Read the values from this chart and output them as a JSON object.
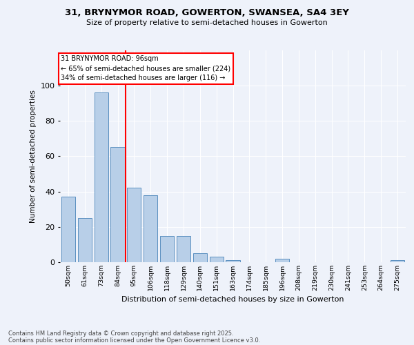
{
  "title1": "31, BRYNYMOR ROAD, GOWERTON, SWANSEA, SA4 3EY",
  "title2": "Size of property relative to semi-detached houses in Gowerton",
  "xlabel": "Distribution of semi-detached houses by size in Gowerton",
  "ylabel": "Number of semi-detached properties",
  "categories": [
    "50sqm",
    "61sqm",
    "73sqm",
    "84sqm",
    "95sqm",
    "106sqm",
    "118sqm",
    "129sqm",
    "140sqm",
    "151sqm",
    "163sqm",
    "174sqm",
    "185sqm",
    "196sqm",
    "208sqm",
    "219sqm",
    "230sqm",
    "241sqm",
    "253sqm",
    "264sqm",
    "275sqm"
  ],
  "values": [
    37,
    25,
    96,
    65,
    42,
    38,
    15,
    15,
    5,
    3,
    1,
    0,
    0,
    2,
    0,
    0,
    0,
    0,
    0,
    0,
    1
  ],
  "bar_color": "#b8cfe8",
  "bar_edge_color": "#5a8fc0",
  "vline_x": 3.5,
  "annotation_title": "31 BRYNYMOR ROAD: 96sqm",
  "annotation_line1": "← 65% of semi-detached houses are smaller (224)",
  "annotation_line2": "34% of semi-detached houses are larger (116) →",
  "vline_color": "red",
  "footer1": "Contains HM Land Registry data © Crown copyright and database right 2025.",
  "footer2": "Contains public sector information licensed under the Open Government Licence v3.0.",
  "ylim": [
    0,
    120
  ],
  "yticks": [
    0,
    20,
    40,
    60,
    80,
    100
  ],
  "background_color": "#eef2fa",
  "grid_color": "#ffffff"
}
